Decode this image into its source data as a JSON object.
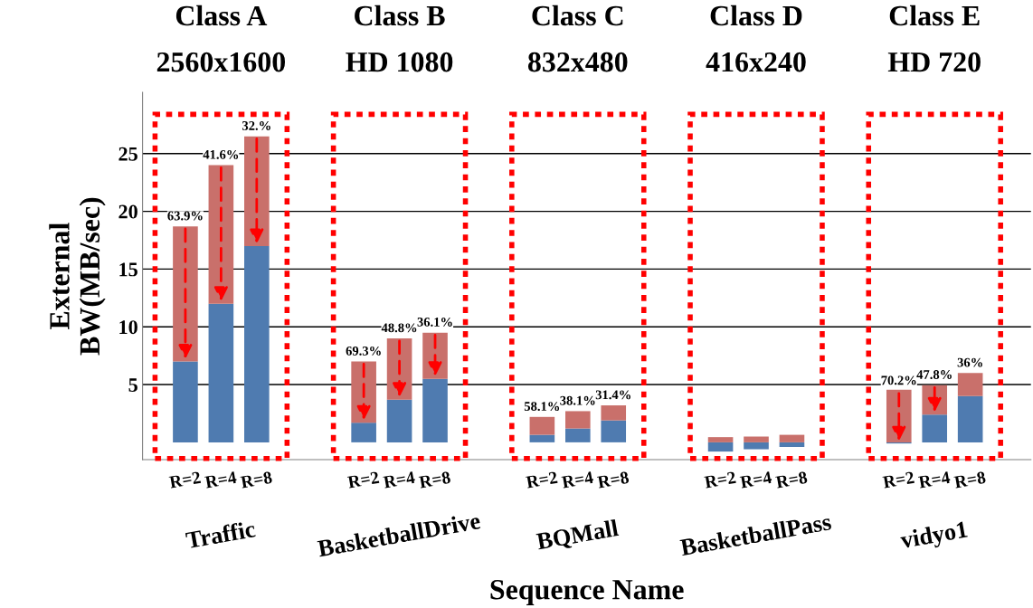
{
  "chart_data": {
    "type": "bar",
    "xlabel": "Sequence Name",
    "ylabel": "External\nBW(MB/sec)",
    "categories": [
      "R=2",
      "R=4",
      "R=8",
      null,
      null,
      "R=2",
      "R=4",
      "R=8",
      null,
      null,
      "R=2",
      "R=4",
      "R=8",
      null,
      null,
      "R=2",
      "R=4",
      "R=8",
      null,
      null,
      "R=2",
      "R=4",
      "R=8"
    ],
    "series": [
      {
        "color": "#4f7bb0",
        "values": [
          7.0,
          12.0,
          17.0,
          null,
          null,
          1.7,
          3.7,
          5.5,
          null,
          null,
          0.65,
          1.2,
          1.9,
          null,
          null,
          -0.8,
          -0.6,
          -0.4,
          null,
          null,
          -0.1,
          2.4,
          4.0
        ]
      },
      {
        "color": "#c9706b",
        "values": [
          11.7,
          12.0,
          9.5,
          null,
          null,
          5.3,
          5.3,
          4.0,
          null,
          null,
          1.55,
          1.5,
          1.3,
          null,
          null,
          0.45,
          0.5,
          0.65,
          null,
          null,
          4.55,
          2.55,
          2.0
        ]
      }
    ],
    "stacked": true,
    "ylim": [
      -1.5,
      30.3
    ],
    "yticks": [
      5,
      10,
      15,
      20,
      25
    ],
    "grid": "y",
    "annotations": [
      "Class A\n2560x1600",
      "Class B\nHD 1080",
      "Class C\n832x480",
      "Class D\n416x240",
      "Class E\nHD 720",
      "Traffic",
      "BasketballDrive",
      "BQMall",
      "BasketballPass",
      "vidyo1",
      {
        "text": "63.9%",
        "y": 18.7
      },
      {
        "text": "41.6%",
        "y": 24.0
      },
      {
        "text": "32.%",
        "y": 26.5
      },
      {
        "text": "69.3%",
        "y": 7.0
      },
      {
        "text": "48.8%",
        "y": 9.0
      },
      {
        "text": "36.1%",
        "y": 9.5
      },
      {
        "text": "58.1%",
        "y": 2.2
      },
      {
        "text": "38.1%",
        "y": 2.7
      },
      {
        "text": "31.4%",
        "y": 3.2
      },
      {
        "text": "70.2%",
        "y": 4.45
      },
      {
        "text": "47.8%",
        "y": 4.95
      },
      {
        "text": "36%",
        "y": 6.0
      }
    ]
  }
}
